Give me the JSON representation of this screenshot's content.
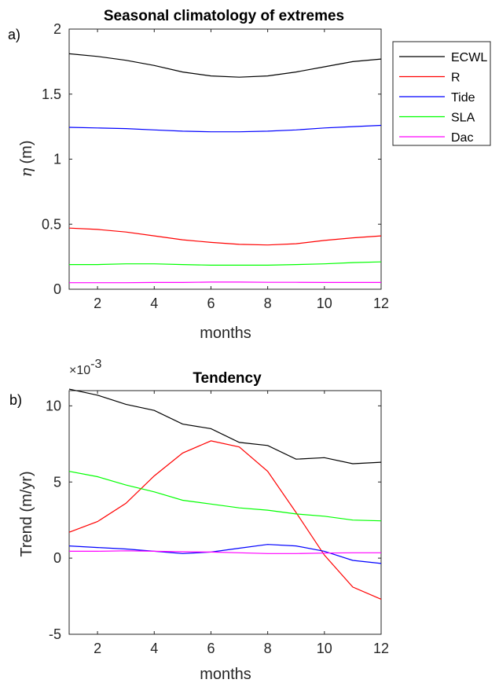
{
  "chart_data": [
    {
      "type": "line",
      "panel_label": "a)",
      "title": "Seasonal climatology of extremes",
      "xlabel": "months",
      "ylabel_symbol": "η",
      "ylabel_unit": "(m)",
      "xlim": [
        1,
        12
      ],
      "ylim": [
        0,
        2
      ],
      "xticks": [
        2,
        4,
        6,
        8,
        10,
        12
      ],
      "yticks": [
        0,
        0.5,
        1,
        1.5,
        2
      ],
      "ytick_labels": [
        "0",
        "0.5",
        "1",
        "1.5",
        "2"
      ],
      "legend_position": "outside-right",
      "x": [
        1,
        2,
        3,
        4,
        5,
        6,
        7,
        8,
        9,
        10,
        11,
        12
      ],
      "series": [
        {
          "name": "ECWL",
          "color": "#000000",
          "values": [
            1.81,
            1.79,
            1.76,
            1.72,
            1.67,
            1.64,
            1.63,
            1.64,
            1.67,
            1.71,
            1.75,
            1.77
          ]
        },
        {
          "name": "R",
          "color": "#ff0000",
          "values": [
            0.47,
            0.46,
            0.44,
            0.41,
            0.38,
            0.36,
            0.345,
            0.34,
            0.35,
            0.375,
            0.395,
            0.41
          ]
        },
        {
          "name": "Tide",
          "color": "#0000ff",
          "values": [
            1.245,
            1.24,
            1.235,
            1.225,
            1.215,
            1.21,
            1.21,
            1.215,
            1.225,
            1.24,
            1.25,
            1.26
          ]
        },
        {
          "name": "SLA",
          "color": "#00ff00",
          "values": [
            0.19,
            0.19,
            0.195,
            0.195,
            0.19,
            0.185,
            0.185,
            0.185,
            0.19,
            0.195,
            0.205,
            0.21
          ]
        },
        {
          "name": "Dac",
          "color": "#ff00ff",
          "values": [
            0.05,
            0.05,
            0.05,
            0.052,
            0.052,
            0.055,
            0.055,
            0.053,
            0.053,
            0.052,
            0.052,
            0.052
          ]
        }
      ]
    },
    {
      "type": "line",
      "panel_label": "b)",
      "title": "Tendency",
      "xlabel": "months",
      "ylabel": "Trend (m/yr)",
      "y_multiplier_base": "×10",
      "y_multiplier_exp": "-3",
      "xlim": [
        1,
        12
      ],
      "ylim": [
        -5,
        11
      ],
      "xticks": [
        2,
        4,
        6,
        8,
        10,
        12
      ],
      "yticks": [
        -5,
        0,
        5,
        10
      ],
      "ytick_labels": [
        "-5",
        "0",
        "5",
        "10"
      ],
      "x": [
        1,
        2,
        3,
        4,
        5,
        6,
        7,
        8,
        9,
        10,
        11,
        12
      ],
      "series": [
        {
          "name": "ECWL",
          "color": "#000000",
          "values": [
            11.1,
            10.7,
            10.1,
            9.7,
            8.8,
            8.5,
            7.6,
            7.4,
            6.5,
            6.6,
            6.2,
            6.3
          ]
        },
        {
          "name": "R",
          "color": "#ff0000",
          "values": [
            1.7,
            2.4,
            3.6,
            5.4,
            6.9,
            7.7,
            7.3,
            5.7,
            3.0,
            0.2,
            -1.9,
            -2.7
          ]
        },
        {
          "name": "Tide",
          "color": "#0000ff",
          "values": [
            0.8,
            0.7,
            0.6,
            0.45,
            0.3,
            0.4,
            0.65,
            0.9,
            0.8,
            0.45,
            -0.15,
            -0.35
          ]
        },
        {
          "name": "SLA",
          "color": "#00ff00",
          "values": [
            5.7,
            5.35,
            4.8,
            4.35,
            3.8,
            3.55,
            3.3,
            3.15,
            2.9,
            2.75,
            2.5,
            2.45
          ]
        },
        {
          "name": "Dac",
          "color": "#ff00ff",
          "values": [
            0.45,
            0.45,
            0.48,
            0.45,
            0.42,
            0.4,
            0.35,
            0.3,
            0.3,
            0.33,
            0.35,
            0.35
          ]
        }
      ]
    }
  ]
}
